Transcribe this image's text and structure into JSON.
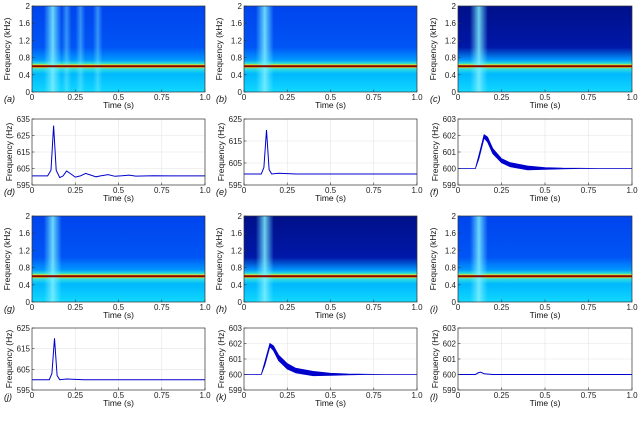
{
  "chart_data": [
    {
      "panel": "a",
      "type": "heatmap",
      "label": "(a)",
      "xlabel": "Time (s)",
      "ylabel": "Frequency (kHz)",
      "xlim": [
        0,
        1
      ],
      "ylim": [
        0,
        2
      ],
      "xticks": [
        0,
        0.25,
        0.5,
        0.75,
        1.0
      ],
      "xticklabels": [
        "0",
        "0.25",
        "0.5",
        "0.75",
        "1.0"
      ],
      "yticks": [
        0,
        0.4,
        0.8,
        1.2,
        1.6,
        2
      ],
      "yticklabels": [
        "0",
        "0.4",
        "0.8",
        "1.2",
        "1.6",
        "2"
      ],
      "ridge_frequency": 0.6,
      "transient_time": 0.12,
      "transient_bursts": [
        0.12,
        0.2,
        0.28,
        0.38
      ],
      "dark_top": false
    },
    {
      "panel": "b",
      "type": "heatmap",
      "label": "(b)",
      "xlabel": "Time (s)",
      "ylabel": "Frequency (kHz)",
      "xlim": [
        0,
        1
      ],
      "ylim": [
        0,
        2
      ],
      "xticks": [
        0,
        0.25,
        0.5,
        0.75,
        1.0
      ],
      "xticklabels": [
        "0",
        "0.25",
        "0.5",
        "0.75",
        "1.0"
      ],
      "yticks": [
        0,
        0.4,
        0.8,
        1.2,
        1.6,
        2
      ],
      "yticklabels": [
        "0",
        "0.4",
        "0.8",
        "1.2",
        "1.6",
        "2"
      ],
      "ridge_frequency": 0.6,
      "transient_time": 0.12,
      "transient_bursts": [
        0.12
      ],
      "dark_top": false
    },
    {
      "panel": "c",
      "type": "heatmap",
      "label": "(c)",
      "xlabel": "Time (s)",
      "ylabel": "Frequency (kHz)",
      "xlim": [
        0,
        1
      ],
      "ylim": [
        0,
        2
      ],
      "xticks": [
        0,
        0.25,
        0.5,
        0.75,
        1.0
      ],
      "xticklabels": [
        "0",
        "0.25",
        "0.5",
        "0.75",
        "1.0"
      ],
      "yticks": [
        0,
        0.4,
        0.8,
        1.2,
        1.6,
        2
      ],
      "yticklabels": [
        "0",
        "0.4",
        "0.8",
        "1.2",
        "1.6",
        "2"
      ],
      "ridge_frequency": 0.6,
      "transient_time": 0.12,
      "transient_bursts": [
        0.12
      ],
      "dark_top": true
    },
    {
      "panel": "d",
      "type": "line",
      "label": "(d)",
      "xlabel": "Time (s)",
      "ylabel": "Frequency (Hz)",
      "xlim": [
        0,
        1
      ],
      "ylim": [
        595,
        635
      ],
      "xticks": [
        0,
        0.25,
        0.5,
        0.75,
        1.0
      ],
      "xticklabels": [
        "0",
        "0.25",
        "0.5",
        "0.75",
        "1.0"
      ],
      "yticks": [
        595,
        605,
        615,
        625,
        635
      ],
      "yticklabels": [
        "595",
        "605",
        "615",
        "625",
        "635"
      ],
      "series": [
        {
          "x": [
            0,
            0.09,
            0.11,
            0.125,
            0.14,
            0.16,
            0.18,
            0.2,
            0.22,
            0.25,
            0.28,
            0.31,
            0.34,
            0.37,
            0.4,
            0.44,
            0.48,
            0.52,
            0.56,
            0.6,
            0.7,
            0.8,
            0.9,
            1.0
          ],
          "y": [
            600.5,
            600.5,
            604,
            631,
            604,
            599.5,
            600.5,
            603.5,
            602,
            599.8,
            600.5,
            602,
            601,
            600,
            600.6,
            601.3,
            600.3,
            600.6,
            601,
            600.4,
            600.6,
            600.5,
            600.5,
            600.5
          ]
        }
      ]
    },
    {
      "panel": "e",
      "type": "line",
      "label": "(e)",
      "xlabel": "Time (s)",
      "ylabel": "Frequency (Hz)",
      "xlim": [
        0,
        1
      ],
      "ylim": [
        595,
        625
      ],
      "xticks": [
        0,
        0.25,
        0.5,
        0.75,
        1.0
      ],
      "xticklabels": [
        "0",
        "0.25",
        "0.5",
        "0.75",
        "1.0"
      ],
      "yticks": [
        595,
        605,
        615,
        625
      ],
      "yticklabels": [
        "595",
        "605",
        "615",
        "625"
      ],
      "series": [
        {
          "x": [
            0,
            0.1,
            0.115,
            0.13,
            0.145,
            0.16,
            0.2,
            0.3,
            0.5,
            1.0
          ],
          "y": [
            600,
            600,
            603,
            620,
            602,
            600,
            600.3,
            600,
            600,
            600
          ]
        }
      ]
    },
    {
      "panel": "f",
      "type": "area",
      "label": "(f)",
      "xlabel": "Time (s)",
      "ylabel": "Frequency (Hz)",
      "xlim": [
        0,
        1
      ],
      "ylim": [
        599,
        603
      ],
      "xticks": [
        0,
        0.25,
        0.5,
        0.75,
        1.0
      ],
      "xticklabels": [
        "0",
        "0.25",
        "0.5",
        "0.75",
        "1.0"
      ],
      "yticks": [
        599,
        600,
        601,
        602,
        603
      ],
      "yticklabels": [
        "599",
        "600",
        "601",
        "602",
        "603"
      ],
      "series": [
        {
          "x": [
            0,
            0.1,
            0.12,
            0.15,
            0.17,
            0.2,
            0.25,
            0.3,
            0.4,
            0.5,
            0.6,
            0.7,
            0.8,
            1.0
          ],
          "y": [
            600,
            600,
            600.8,
            602.05,
            601.9,
            601.2,
            600.6,
            600.35,
            600.15,
            600.05,
            600.02,
            600.01,
            600,
            600
          ]
        },
        {
          "x": [
            0,
            0.1,
            0.12,
            0.15,
            0.17,
            0.2,
            0.25,
            0.3,
            0.4,
            0.5,
            0.6,
            0.7,
            0.8,
            1.0
          ],
          "y": [
            600,
            600,
            600.6,
            601.85,
            601.6,
            600.9,
            600.35,
            600.1,
            599.92,
            599.95,
            599.98,
            600,
            600,
            600
          ]
        }
      ]
    },
    {
      "panel": "g",
      "type": "heatmap",
      "label": "(g)",
      "xlabel": "Time (s)",
      "ylabel": "Frequency (kHz)",
      "xlim": [
        0,
        1
      ],
      "ylim": [
        0,
        2
      ],
      "xticks": [
        0,
        0.25,
        0.5,
        0.75,
        1.0
      ],
      "xticklabels": [
        "0",
        "0.25",
        "0.5",
        "0.75",
        "1.0"
      ],
      "yticks": [
        0,
        0.4,
        0.8,
        1.2,
        1.6,
        2
      ],
      "yticklabels": [
        "0",
        "0.4",
        "0.8",
        "1.2",
        "1.6",
        "2"
      ],
      "ridge_frequency": 0.6,
      "transient_time": 0.12,
      "transient_bursts": [
        0.12
      ],
      "dark_top": false
    },
    {
      "panel": "h",
      "type": "heatmap",
      "label": "(h)",
      "xlabel": "Time (s)",
      "ylabel": "Frequency (kHz)",
      "xlim": [
        0,
        1
      ],
      "ylim": [
        0,
        2
      ],
      "xticks": [
        0,
        0.25,
        0.5,
        0.75,
        1.0
      ],
      "xticklabels": [
        "0",
        "0.25",
        "0.5",
        "0.75",
        "1.0"
      ],
      "yticks": [
        0,
        0.4,
        0.8,
        1.2,
        1.6,
        2
      ],
      "yticklabels": [
        "0",
        "0.4",
        "0.8",
        "1.2",
        "1.6",
        "2"
      ],
      "ridge_frequency": 0.6,
      "transient_time": 0.12,
      "transient_bursts": [
        0.12
      ],
      "dark_top": true
    },
    {
      "panel": "i",
      "type": "heatmap",
      "label": "(i)",
      "xlabel": "Time (s)",
      "ylabel": "Frequency (kHz)",
      "xlim": [
        0,
        1
      ],
      "ylim": [
        0,
        2
      ],
      "xticks": [
        0,
        0.25,
        0.5,
        0.75,
        1.0
      ],
      "xticklabels": [
        "0",
        "0.25",
        "0.5",
        "0.75",
        "1.0"
      ],
      "yticks": [
        0,
        0.4,
        0.8,
        1.2,
        1.6,
        2
      ],
      "yticklabels": [
        "0",
        "0.4",
        "0.8",
        "1.2",
        "1.6",
        "2"
      ],
      "ridge_frequency": 0.6,
      "transient_time": 0.12,
      "transient_bursts": [
        0.12
      ],
      "dark_top": false
    },
    {
      "panel": "j",
      "type": "line",
      "label": "(j)",
      "xlabel": "Time (s)",
      "ylabel": "Frequency (Hz)",
      "xlim": [
        0,
        1
      ],
      "ylim": [
        595,
        625
      ],
      "xticks": [
        0,
        0.25,
        0.5,
        0.75,
        1.0
      ],
      "xticklabels": [
        "0",
        "0.25",
        "0.5",
        "0.75",
        "1.0"
      ],
      "yticks": [
        595,
        605,
        615,
        625
      ],
      "yticklabels": [
        "595",
        "605",
        "615",
        "625"
      ],
      "series": [
        {
          "x": [
            0,
            0.1,
            0.115,
            0.13,
            0.145,
            0.16,
            0.2,
            0.3,
            0.5,
            1.0
          ],
          "y": [
            600,
            600,
            603,
            620,
            602,
            600,
            600.3,
            600,
            600,
            600
          ]
        }
      ]
    },
    {
      "panel": "k",
      "type": "area",
      "label": "(k)",
      "xlabel": "Time (s)",
      "ylabel": "Frequency (Hz)",
      "xlim": [
        0,
        1
      ],
      "ylim": [
        599,
        603
      ],
      "xticks": [
        0,
        0.25,
        0.5,
        0.75,
        1.0
      ],
      "xticklabels": [
        "0",
        "0.25",
        "0.5",
        "0.75",
        "1.0"
      ],
      "yticks": [
        599,
        600,
        601,
        602,
        603
      ],
      "yticklabels": [
        "599",
        "600",
        "601",
        "602",
        "603"
      ],
      "series": [
        {
          "x": [
            0,
            0.1,
            0.12,
            0.15,
            0.17,
            0.2,
            0.25,
            0.3,
            0.4,
            0.5,
            0.6,
            0.7,
            0.8,
            1.0
          ],
          "y": [
            600,
            600,
            600.8,
            602.0,
            601.85,
            601.25,
            600.7,
            600.4,
            600.2,
            600.08,
            600.03,
            600.01,
            600,
            600
          ]
        },
        {
          "x": [
            0,
            0.1,
            0.12,
            0.15,
            0.17,
            0.2,
            0.25,
            0.3,
            0.4,
            0.5,
            0.6,
            0.7,
            0.8,
            1.0
          ],
          "y": [
            600,
            600,
            600.6,
            601.8,
            601.55,
            600.9,
            600.35,
            600.1,
            599.92,
            599.95,
            599.98,
            600,
            600,
            600
          ]
        }
      ]
    },
    {
      "panel": "l",
      "type": "line",
      "label": "(l)",
      "xlabel": "Time (s)",
      "ylabel": "Frequency (Hz)",
      "xlim": [
        0,
        1
      ],
      "ylim": [
        599,
        603
      ],
      "xticks": [
        0,
        0.25,
        0.5,
        0.75,
        1.0
      ],
      "xticklabels": [
        "0",
        "0.25",
        "0.5",
        "0.75",
        "1.0"
      ],
      "yticks": [
        599,
        600,
        601,
        602,
        603
      ],
      "yticklabels": [
        "599",
        "600",
        "601",
        "602",
        "603"
      ],
      "series": [
        {
          "x": [
            0,
            0.1,
            0.115,
            0.13,
            0.15,
            0.2,
            1.0
          ],
          "y": [
            600,
            600,
            600.1,
            600.15,
            600.05,
            600,
            600
          ]
        }
      ]
    }
  ]
}
